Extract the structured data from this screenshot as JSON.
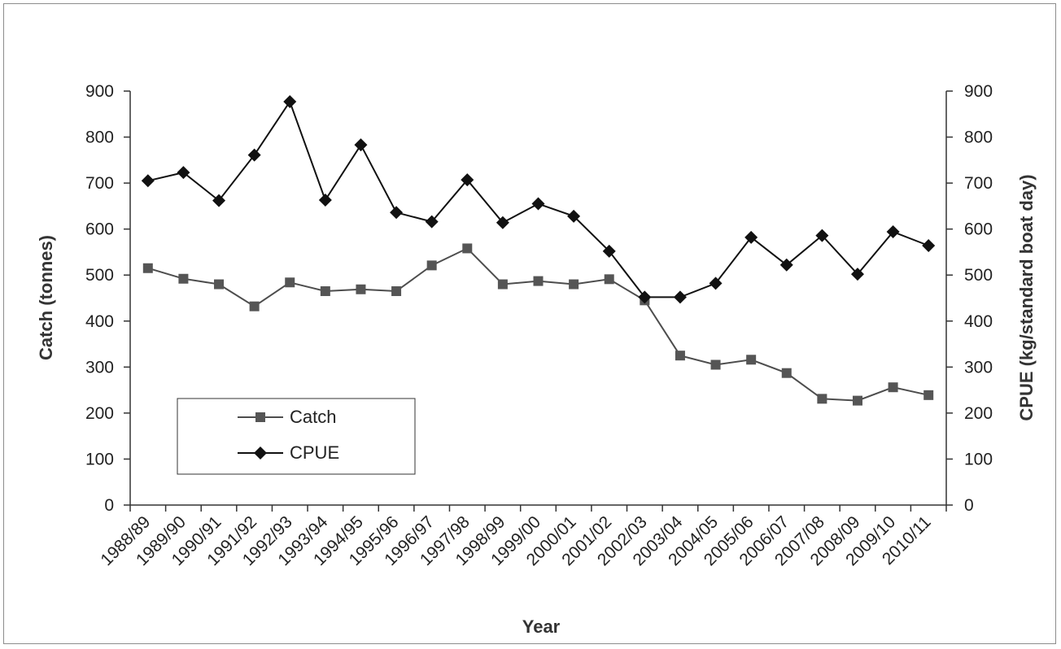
{
  "chart_data": {
    "type": "line",
    "xlabel": "Year",
    "ylabel": "Catch (tonnes)",
    "y2label": "CPUE (kg/standard boat day)",
    "ylim": [
      0,
      900
    ],
    "y2lim": [
      0,
      900
    ],
    "yticks": [
      0,
      100,
      200,
      300,
      400,
      500,
      600,
      700,
      800,
      900
    ],
    "grid": false,
    "legend_position": "lower-left",
    "categories": [
      "1988/89",
      "1989/90",
      "1990/91",
      "1991/92",
      "1992/93",
      "1993/94",
      "1994/95",
      "1995/96",
      "1996/97",
      "1997/98",
      "1998/99",
      "1999/00",
      "2000/01",
      "2001/02",
      "2002/03",
      "2003/04",
      "2004/05",
      "2005/06",
      "2006/07",
      "2007/08",
      "2008/09",
      "2009/10",
      "2010/11"
    ],
    "series": [
      {
        "name": "Catch",
        "axis": "left",
        "marker": "square",
        "color": "#4d4d4d",
        "values": [
          515,
          492,
          480,
          432,
          484,
          465,
          469,
          465,
          521,
          558,
          480,
          487,
          480,
          491,
          445,
          325,
          305,
          316,
          287,
          231,
          227,
          256,
          239
        ]
      },
      {
        "name": "CPUE",
        "axis": "right",
        "marker": "diamond",
        "color": "#111111",
        "values": [
          705,
          723,
          662,
          761,
          877,
          663,
          783,
          636,
          616,
          707,
          614,
          655,
          628,
          552,
          452,
          452,
          482,
          582,
          522,
          586,
          502,
          594,
          564
        ]
      }
    ]
  }
}
